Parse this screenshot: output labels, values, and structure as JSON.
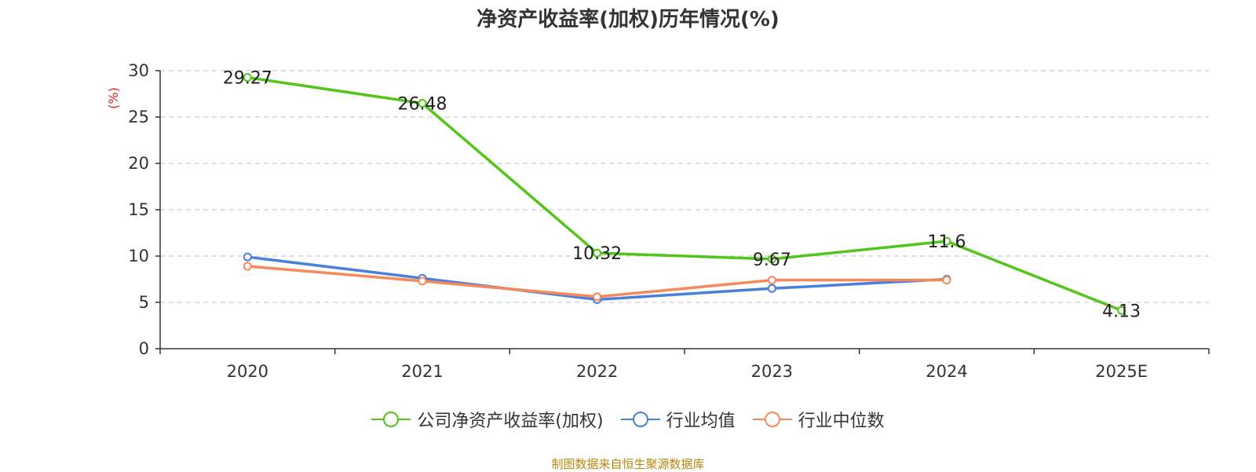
{
  "chart_data": {
    "type": "line",
    "title": "净资产收益率(加权)历年情况(%)",
    "ylabel": "(%)",
    "xlabel": "",
    "categories": [
      "2020",
      "2021",
      "2022",
      "2023",
      "2024",
      "2025E"
    ],
    "ylim": [
      0,
      30
    ],
    "yticks": [
      "0",
      "5",
      "10",
      "15",
      "20",
      "25",
      "30"
    ],
    "grid": true,
    "legend_position": "bottom",
    "series": [
      {
        "name": "公司净资产收益率(加权)",
        "color": "#52c41a",
        "values": [
          29.27,
          26.48,
          10.32,
          9.67,
          11.6,
          4.13
        ],
        "labels": [
          "29.27",
          "26.48",
          "10.32",
          "9.67",
          "11.6",
          "4.13"
        ]
      },
      {
        "name": "行业均值",
        "color": "#4a7fdb",
        "values": [
          9.9,
          7.6,
          5.3,
          6.5,
          7.5,
          null
        ]
      },
      {
        "name": "行业中位数",
        "color": "#f5895a",
        "values": [
          8.9,
          7.3,
          5.6,
          7.4,
          7.4,
          null
        ]
      }
    ]
  },
  "footer": {
    "source": "制图数据来自恒生聚源数据库"
  },
  "colors": {
    "ylabel": "#e02020",
    "axis": "#333333",
    "grid": "#cccccc"
  }
}
